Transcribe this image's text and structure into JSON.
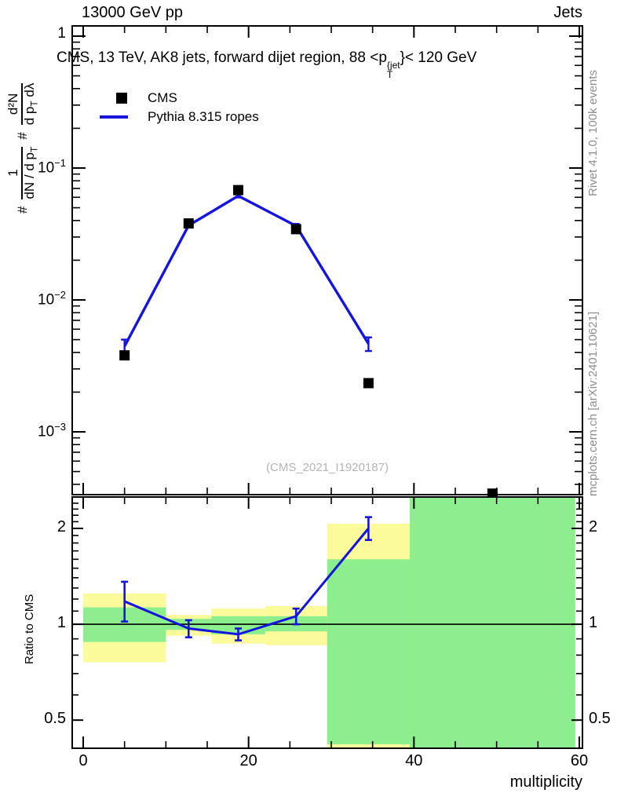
{
  "header": {
    "left": "13000 GeV pp",
    "right": "Jets"
  },
  "title": {
    "pre": "CMS, 13 TeV, AK8 jets, forward dijet region, 88 <p",
    "sup": "{jet",
    "sub": "T",
    "post": "}< 120 GeV"
  },
  "ylabel": {
    "hash1": "#",
    "frac1_num": "1",
    "frac1_den_pre": "dN / d p",
    "frac1_den_sub": "T",
    "hash2": "#",
    "frac2_num": "d²N",
    "frac2_den_pre": "d p",
    "frac2_den_sub": "T",
    "frac2_den_post": " dλ"
  },
  "legend": {
    "items": [
      {
        "label": "CMS",
        "marker": "black-square"
      },
      {
        "label": "Pythia 8.315 ropes",
        "marker": "blue-line"
      }
    ]
  },
  "watermark": "(CMS_2021_I1920187)",
  "right_margin": {
    "top": "Rivet 4.1.0,  100k events",
    "bottom": "mcplots.cern.ch [arXiv:2401.10621]"
  },
  "ratio_panel": {
    "ylabel": "Ratio to CMS"
  },
  "xaxis": {
    "label": "multiplicity"
  },
  "colors": {
    "blue": "#1414dd",
    "yellow": "#fbfb9c",
    "green": "#8cee8c",
    "gray": "#8e8e8e",
    "watermark": "#b4b4b4",
    "black": "#000000"
  },
  "main_ytick_labels": [
    {
      "v": 1,
      "base": "1",
      "exp": ""
    },
    {
      "v": 0.1,
      "base": "10",
      "exp": "−1"
    },
    {
      "v": 0.01,
      "base": "10",
      "exp": "−2"
    },
    {
      "v": 0.001,
      "base": "10",
      "exp": "−3"
    }
  ],
  "ratio_ytick_labels": [
    {
      "v": 2,
      "label": "2"
    },
    {
      "v": 1,
      "label": "1"
    },
    {
      "v": 0.5,
      "label": "0.5"
    }
  ],
  "xtick_labels": [
    {
      "v": 0,
      "label": "0"
    },
    {
      "v": 20,
      "label": "20"
    },
    {
      "v": 40,
      "label": "40"
    },
    {
      "v": 60,
      "label": "60"
    }
  ],
  "chart_data": [
    {
      "panel": "main",
      "type": "line",
      "title": "CMS, 13 TeV, AK8 jets, forward dijet region, 88 < pT^jet < 120 GeV",
      "xlabel": "multiplicity",
      "ylabel": "# 1/(dN/dpT) # d2N/(dpT dLambda)",
      "yscale": "log",
      "xlim": [
        -1.33,
        60.5
      ],
      "ylim": [
        0.000334,
        1.195
      ],
      "xticks_major": [
        0,
        20,
        40,
        60
      ],
      "xticks_minor_step": 5,
      "yticks_labeled": [
        1,
        0.1,
        0.01,
        0.001
      ],
      "grid": false,
      "legend_position": "top-left",
      "series": [
        {
          "name": "CMS",
          "type": "scatter",
          "marker": "filled-square",
          "color": "#000000",
          "points": [
            {
              "x": 5,
              "y": 0.0038
            },
            {
              "x": 12.75,
              "y": 0.038
            },
            {
              "x": 18.75,
              "y": 0.068
            },
            {
              "x": 25.75,
              "y": 0.0344
            },
            {
              "x": 34.5,
              "y": 0.00234
            },
            {
              "x": 49.5,
              "y": 0.00034,
              "clipped_at_bottom": true
            }
          ]
        },
        {
          "name": "Pythia 8.315 ropes",
          "type": "line",
          "color": "#1414dd",
          "points": [
            {
              "x": 5,
              "y": 0.00445,
              "ylo": 0.0038,
              "yhi": 0.005
            },
            {
              "x": 12.75,
              "y": 0.0367,
              "ylo": 0.0355,
              "yhi": 0.0379
            },
            {
              "x": 18.75,
              "y": 0.0615,
              "ylo": 0.0598,
              "yhi": 0.0633
            },
            {
              "x": 25.75,
              "y": 0.0364,
              "ylo": 0.0351,
              "yhi": 0.0377
            },
            {
              "x": 34.5,
              "y": 0.00465,
              "ylo": 0.0041,
              "yhi": 0.0052
            }
          ]
        }
      ]
    },
    {
      "panel": "ratio",
      "type": "ratio",
      "ylabel": "Ratio to CMS",
      "yscale": "log",
      "ylim": [
        0.408,
        2.51
      ],
      "yticks_labeled": [
        2,
        1,
        0.5
      ],
      "reference_line": 1,
      "bands": [
        {
          "x0": 0,
          "x1": 10,
          "yellow": [
            0.76,
            1.25
          ],
          "green": [
            0.88,
            1.13
          ]
        },
        {
          "x0": 10,
          "x1": 15.5,
          "yellow": [
            0.92,
            1.07
          ],
          "green": [
            0.96,
            1.04
          ]
        },
        {
          "x0": 15.5,
          "x1": 22,
          "yellow": [
            0.87,
            1.12
          ],
          "green": [
            0.93,
            1.06
          ]
        },
        {
          "x0": 22,
          "x1": 29.5,
          "yellow": [
            0.86,
            1.14
          ],
          "green": [
            0.95,
            1.06
          ]
        },
        {
          "x0": 29.5,
          "x1": 39.5,
          "yellow": [
            0.37,
            2.07
          ],
          "green": [
            0.42,
            1.6
          ]
        },
        {
          "x0": 39.5,
          "x1": 59.5,
          "yellow": [
            0.37,
            2.54
          ],
          "green": [
            0.37,
            2.54
          ]
        }
      ],
      "points": [
        {
          "x": 5,
          "y": 1.18,
          "ylo": 1.02,
          "yhi": 1.36
        },
        {
          "x": 12.75,
          "y": 0.97,
          "ylo": 0.91,
          "yhi": 1.03
        },
        {
          "x": 18.75,
          "y": 0.93,
          "ylo": 0.89,
          "yhi": 0.97
        },
        {
          "x": 25.75,
          "y": 1.06,
          "ylo": 1.0,
          "yhi": 1.12
        },
        {
          "x": 34.5,
          "y": 2.0,
          "ylo": 1.84,
          "yhi": 2.17
        }
      ]
    }
  ]
}
